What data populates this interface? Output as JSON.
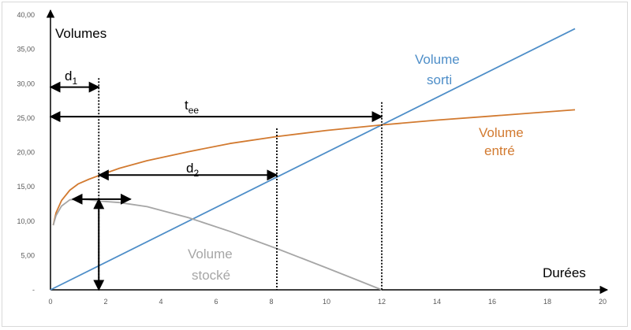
{
  "chart_data": {
    "type": "line",
    "title": "",
    "xlabel": "Durées",
    "ylabel": "Volumes",
    "xlim": [
      0,
      20
    ],
    "ylim": [
      0,
      40
    ],
    "x_ticks": [
      "0",
      "2",
      "4",
      "6",
      "8",
      "10",
      "12",
      "14",
      "16",
      "18",
      "20"
    ],
    "y_ticks": [
      "-",
      "5,00",
      "10,00",
      "15,00",
      "20,00",
      "25,00",
      "30,00",
      "35,00",
      "40,00"
    ],
    "grid": false,
    "colors": {
      "sorti": "#4e8ec8",
      "entre": "#d27a30",
      "stocke": "#a6a6a6"
    },
    "series": [
      {
        "name": "Volume sorti",
        "label_lines": [
          "Volume",
          "sorti"
        ],
        "x": [
          0,
          19
        ],
        "y": [
          0,
          38
        ]
      },
      {
        "name": "Volume entré",
        "label_lines": [
          "Volume",
          "entré"
        ],
        "x": [
          0.1,
          0.2,
          0.4,
          0.7,
          1.0,
          1.4,
          1.8,
          2.5,
          3.5,
          5,
          6.5,
          8.2,
          10,
          12,
          14,
          16,
          18,
          19
        ],
        "y": [
          9.4,
          11.2,
          13.0,
          14.5,
          15.4,
          16.1,
          16.7,
          17.7,
          18.8,
          20.1,
          21.3,
          22.3,
          23.2,
          24.0,
          24.7,
          25.3,
          25.9,
          26.2
        ]
      },
      {
        "name": "Volume stocké",
        "label_lines": [
          "Volume",
          "stocké"
        ],
        "x": [
          0.1,
          0.2,
          0.4,
          0.7,
          1.0,
          1.4,
          1.8,
          2.5,
          3.5,
          5,
          6.5,
          8.2,
          10,
          11,
          12
        ],
        "y": [
          9.4,
          10.8,
          12.2,
          13.1,
          13.2,
          13.1,
          12.9,
          12.7,
          12.1,
          10.5,
          8.5,
          6.0,
          3.2,
          1.6,
          0.0
        ]
      }
    ],
    "annotations": {
      "d1": {
        "label": "d",
        "sub": "1",
        "from": 0,
        "to": 1.75,
        "y": 29.5
      },
      "tee": {
        "label": "t",
        "sub": "ee",
        "from": 0,
        "to": 12,
        "y": 25.2
      },
      "d2": {
        "label": "d",
        "sub": "2",
        "from": 1.75,
        "to": 8.2,
        "y": 16.7
      },
      "dh": {
        "from": 0.8,
        "to": 2.9,
        "y": 13.2
      },
      "dv": {
        "x": 1.75,
        "from": 13.2,
        "to": 0
      },
      "dotted": [
        {
          "x": 1.75,
          "top": 30.8
        },
        {
          "x": 8.2,
          "top": 23.5
        },
        {
          "x": 12,
          "top": 27.3
        }
      ]
    }
  }
}
